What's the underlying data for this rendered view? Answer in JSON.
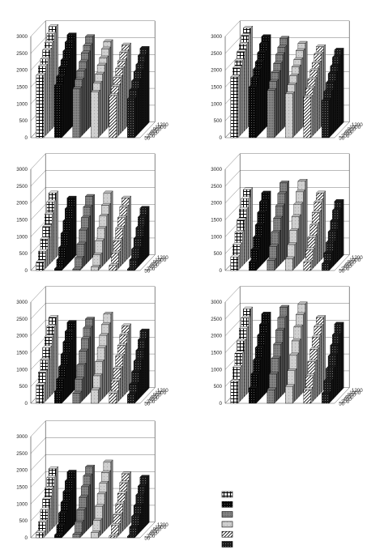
{
  "chart_data": {
    "type": "bar",
    "variant": "3d-grouped-bar-small-multiples",
    "panel_count": 7,
    "series_count": 6,
    "rows": [
      "50",
      "200",
      "400",
      "600",
      "800",
      "1000",
      "1200"
    ],
    "z_ticks": [
      "0",
      "500",
      "1000",
      "1500",
      "2000",
      "2500",
      "3000"
    ],
    "zlim": [
      0,
      3000
    ],
    "grid": true,
    "legend_position": "bottom-right",
    "legend_entries": [
      {
        "label": "",
        "pattern": "grid-check"
      },
      {
        "label": "",
        "pattern": "solid-black"
      },
      {
        "label": "",
        "pattern": "mid-gray-stipple"
      },
      {
        "label": "",
        "pattern": "light-gray"
      },
      {
        "label": "",
        "pattern": "diagonal-hatch"
      },
      {
        "label": "",
        "pattern": "dark-stipple"
      }
    ],
    "panels": [
      {
        "panel": 1,
        "series": [
          {
            "values": [
              1850,
              2050,
              2200,
              2400,
              2550,
              2750,
              2900
            ]
          },
          {
            "values": [
              1550,
              1750,
              1950,
              2100,
              2300,
              2500,
              2650
            ]
          },
          {
            "values": [
              1450,
              1650,
              1850,
              2050,
              2250,
              2400,
              2600
            ]
          },
          {
            "values": [
              1350,
              1550,
              1750,
              1950,
              2100,
              2300,
              2450
            ]
          },
          {
            "values": [
              1250,
              1450,
              1650,
              1850,
              2000,
              2200,
              2350
            ]
          },
          {
            "values": [
              1150,
              1350,
              1550,
              1750,
              1900,
              2100,
              2250
            ]
          }
        ]
      },
      {
        "panel": 2,
        "series": [
          {
            "values": [
              1800,
              2000,
              2150,
              2350,
              2500,
              2700,
              2850
            ]
          },
          {
            "values": [
              1500,
              1700,
              1900,
              2050,
              2250,
              2450,
              2600
            ]
          },
          {
            "values": [
              1400,
              1600,
              1800,
              2000,
              2200,
              2350,
              2550
            ]
          },
          {
            "values": [
              1300,
              1500,
              1700,
              1900,
              2050,
              2250,
              2400
            ]
          },
          {
            "values": [
              1200,
              1400,
              1600,
              1800,
              1950,
              2150,
              2300
            ]
          },
          {
            "values": [
              1100,
              1300,
              1500,
              1700,
              1850,
              2050,
              2200
            ]
          }
        ]
      },
      {
        "panel": 3,
        "series": [
          {
            "values": [
              250,
              500,
              800,
              1100,
              1400,
              1700,
              1900
            ]
          },
          {
            "values": [
              50,
              250,
              550,
              900,
              1200,
              1500,
              1750
            ]
          },
          {
            "values": [
              40,
              300,
              650,
              1000,
              1300,
              1550,
              1800
            ]
          },
          {
            "values": [
              100,
              400,
              750,
              1050,
              1350,
              1600,
              1900
            ]
          },
          {
            "values": [
              150,
              450,
              750,
              1050,
              1300,
              1550,
              1750
            ]
          },
          {
            "values": [
              40,
              250,
              500,
              750,
              1000,
              1250,
              1450
            ]
          }
        ]
      },
      {
        "panel": 4,
        "series": [
          {
            "values": [
              400,
              700,
              1000,
              1300,
              1550,
              1800,
              2000
            ]
          },
          {
            "values": [
              250,
              550,
              850,
              1150,
              1450,
              1700,
              1900
            ]
          },
          {
            "values": [
              300,
              650,
              1000,
              1350,
              1650,
              1950,
              2200
            ]
          },
          {
            "values": [
              350,
              700,
              1050,
              1400,
              1700,
              2000,
              2250
            ]
          },
          {
            "values": [
              250,
              550,
              850,
              1150,
              1450,
              1700,
              1900
            ]
          },
          {
            "values": [
              200,
              450,
              700,
              950,
              1200,
              1450,
              1650
            ]
          }
        ]
      },
      {
        "panel": 5,
        "series": [
          {
            "values": [
              550,
              850,
              1150,
              1450,
              1700,
              1950,
              2150
            ]
          },
          {
            "values": [
              350,
              650,
              950,
              1250,
              1550,
              1800,
              2000
            ]
          },
          {
            "values": [
              300,
              650,
              1000,
              1350,
              1650,
              1900,
              2100
            ]
          },
          {
            "values": [
              400,
              750,
              1100,
              1450,
              1750,
              2000,
              2250
            ]
          },
          {
            "values": [
              300,
              600,
              900,
              1200,
              1450,
              1700,
              1900
            ]
          },
          {
            "values": [
              250,
              500,
              800,
              1050,
              1300,
              1550,
              1750
            ]
          }
        ]
      },
      {
        "panel": 6,
        "series": [
          {
            "values": [
              650,
              1000,
              1350,
              1650,
              1950,
              2200,
              2400
            ]
          },
          {
            "values": [
              450,
              800,
              1150,
              1450,
              1750,
              2000,
              2250
            ]
          },
          {
            "values": [
              400,
              800,
              1200,
              1550,
              1900,
              2200,
              2450
            ]
          },
          {
            "values": [
              500,
              900,
              1300,
              1650,
              2000,
              2300,
              2550
            ]
          },
          {
            "values": [
              400,
              750,
              1100,
              1400,
              1700,
              1950,
              2150
            ]
          },
          {
            "values": [
              300,
              600,
              900,
              1200,
              1450,
              1700,
              1950
            ]
          }
        ]
      },
      {
        "panel": 7,
        "series": [
          {
            "values": [
              150,
              400,
              700,
              950,
              1200,
              1450,
              1650
            ]
          },
          {
            "values": [
              80,
              300,
              600,
              850,
              1100,
              1350,
              1550
            ]
          },
          {
            "values": [
              100,
              400,
              700,
              1000,
              1250,
              1500,
              1700
            ]
          },
          {
            "values": [
              150,
              450,
              800,
              1100,
              1350,
              1600,
              1850
            ]
          },
          {
            "values": [
              50,
              300,
              550,
              800,
              1050,
              1300,
              1500
            ]
          },
          {
            "values": [
              40,
              250,
              500,
              750,
              1000,
              1200,
              1400
            ]
          }
        ]
      }
    ]
  }
}
